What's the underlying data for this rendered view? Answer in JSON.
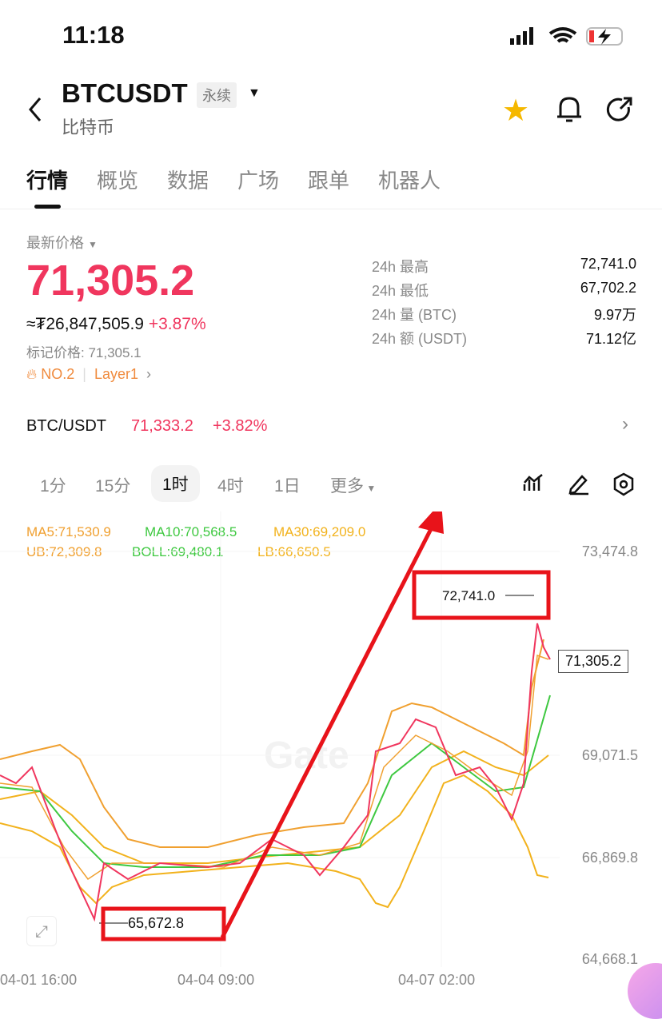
{
  "status": {
    "time": "11:18"
  },
  "header": {
    "symbol": "BTCUSDT",
    "badge": "永续",
    "subtitle": "比特币"
  },
  "tabs": [
    "行情",
    "概览",
    "数据",
    "广场",
    "跟单",
    "机器人"
  ],
  "price": {
    "label": "最新价格",
    "last": "71,305.2",
    "approx": "≈₮26,847,505.9",
    "change": "+3.87%",
    "mark": "标记价格: 71,305.1",
    "rank": "NO.2",
    "tag": "Layer1"
  },
  "stats": [
    {
      "label": "24h  最高",
      "value": "72,741.0"
    },
    {
      "label": "24h  最低",
      "value": "67,702.2"
    },
    {
      "label": "24h  量 (BTC)",
      "value": "9.97万"
    },
    {
      "label": "24h  额 (USDT)",
      "value": "71.12亿"
    }
  ],
  "spot": {
    "pair": "BTC/USDT",
    "price": "71,333.2",
    "change": "+3.82%"
  },
  "timeframes": [
    "1分",
    "15分",
    "1时",
    "4时",
    "1日",
    "更多"
  ],
  "indicators": {
    "ma5": "MA5:71,530.9",
    "ma10": "MA10:70,568.5",
    "ma30": "MA30:69,209.0",
    "ub": "UB:72,309.8",
    "boll": "BOLL:69,480.1",
    "lb": "LB:66,650.5"
  },
  "chart": {
    "y_ticks": [
      "73,474.8",
      "69,071.5",
      "66,869.8",
      "64,668.1"
    ],
    "x_ticks": [
      "04-01 16:00",
      "04-04 09:00",
      "04-07 02:00"
    ],
    "high_label": "72,741.0",
    "low_label": "65,672.8",
    "current": "71,305.2",
    "watermark": "Gate"
  },
  "colors": {
    "up": "#f0365e",
    "down": "#2ebd85",
    "ma5": "#f0a030",
    "ma10": "#3ec840",
    "ma30": "#f2b21c",
    "annotation": "#e8131a"
  }
}
